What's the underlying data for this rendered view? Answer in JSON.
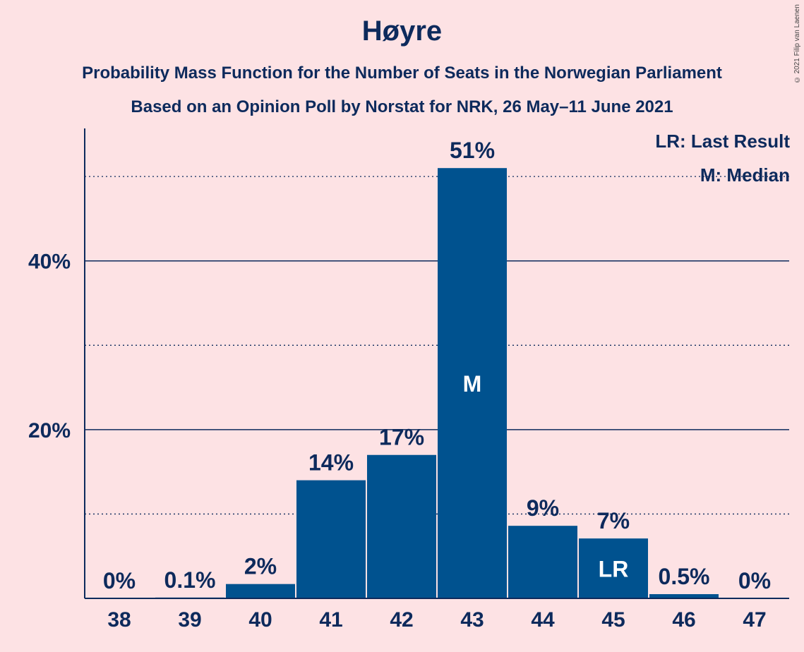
{
  "copyright": "© 2021 Filip van Laenen",
  "legend": {
    "lr": "LR: Last Result",
    "m": "M: Median"
  },
  "colors": {
    "background": "#FDE2E4",
    "bar": "#00528F",
    "text": "#0D2A5C"
  },
  "chart_data": {
    "type": "bar",
    "title": "Høyre",
    "subtitle": "Probability Mass Function for the Number of Seats in the Norwegian Parliament",
    "subtitle2": "Based on an Opinion Poll by Norstat for NRK, 26 May–11 June 2021",
    "xlabel": "",
    "ylabel": "",
    "categories": [
      "38",
      "39",
      "40",
      "41",
      "42",
      "43",
      "44",
      "45",
      "46",
      "47"
    ],
    "values": [
      0,
      0.1,
      1.7,
      14,
      17,
      51,
      8.6,
      7.1,
      0.5,
      0
    ],
    "labels": [
      "0%",
      "0.1%",
      "2%",
      "14%",
      "17%",
      "51%",
      "9%",
      "7%",
      "0.5%",
      "0%"
    ],
    "ylim": [
      0,
      55.7
    ],
    "yticks": [
      {
        "value": 20,
        "label": "20%"
      },
      {
        "value": 40,
        "label": "40%"
      }
    ],
    "grid_minor": [
      10,
      30,
      50
    ],
    "median_category": "43",
    "median_marker": "M",
    "last_result_category": "45",
    "last_result_marker": "LR",
    "legend_position": "top-right"
  }
}
